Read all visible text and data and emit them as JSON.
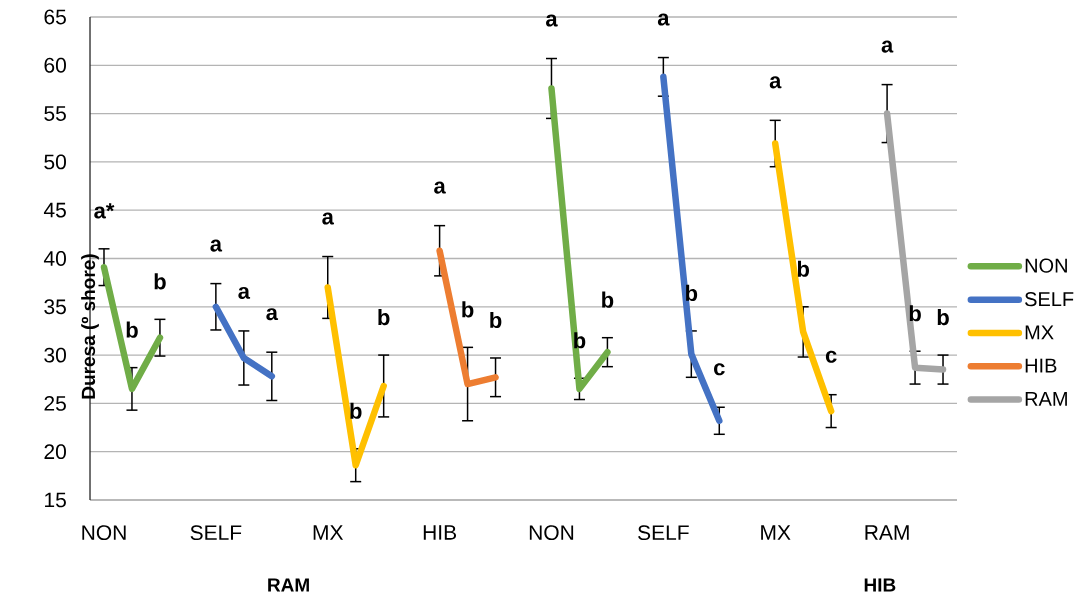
{
  "chart_data": {
    "type": "line",
    "ylabel": "Duresa (º shore)",
    "categories": [
      "NON",
      null,
      null,
      null,
      "SELF",
      null,
      null,
      null,
      "MX",
      null,
      null,
      null,
      "HIB",
      null,
      null,
      null,
      "NON",
      null,
      null,
      null,
      "SELF",
      null,
      null,
      null,
      "MX",
      null,
      null,
      null,
      "RAM",
      null,
      null
    ],
    "ylim": [
      15,
      65
    ],
    "yticks": [
      15,
      20,
      25,
      30,
      35,
      40,
      45,
      50,
      55,
      60,
      65
    ],
    "grid": "y",
    "legend": "right",
    "series": [
      {
        "name": "NON",
        "color": "#70ad47",
        "values": [
          39.1,
          26.5,
          31.8,
          null,
          null,
          null,
          null,
          null,
          null,
          null,
          null,
          null,
          null,
          null,
          null,
          null,
          57.6,
          26.5,
          30.3,
          null,
          null,
          null,
          null,
          null,
          null,
          null,
          null,
          null,
          null,
          null,
          null
        ],
        "errors": [
          1.9,
          2.2,
          1.9,
          null,
          null,
          null,
          null,
          null,
          null,
          null,
          null,
          null,
          null,
          null,
          null,
          null,
          3.1,
          1.1,
          1.5,
          null,
          null,
          null,
          null,
          null,
          null,
          null,
          null,
          null,
          null,
          null,
          null
        ],
        "value_labels": [
          "a*",
          "b",
          "b",
          null,
          null,
          null,
          null,
          null,
          null,
          null,
          null,
          null,
          null,
          null,
          null,
          null,
          "a",
          "b",
          "b",
          null,
          null,
          null,
          null,
          null,
          null,
          null,
          null,
          null,
          null,
          null,
          null
        ]
      },
      {
        "name": "SELF",
        "color": "#4472c4",
        "values": [
          null,
          null,
          null,
          null,
          35.0,
          29.7,
          27.8,
          null,
          null,
          null,
          null,
          null,
          null,
          null,
          null,
          null,
          null,
          null,
          null,
          null,
          58.8,
          30.1,
          23.2,
          null,
          null,
          null,
          null,
          null,
          null,
          null,
          null
        ],
        "errors": [
          null,
          null,
          null,
          null,
          2.4,
          2.8,
          2.5,
          null,
          null,
          null,
          null,
          null,
          null,
          null,
          null,
          null,
          null,
          null,
          null,
          null,
          2.0,
          2.4,
          1.4,
          null,
          null,
          null,
          null,
          null,
          null,
          null,
          null
        ],
        "value_labels": [
          null,
          null,
          null,
          null,
          "a",
          "a",
          "a",
          null,
          null,
          null,
          null,
          null,
          null,
          null,
          null,
          null,
          null,
          null,
          null,
          null,
          "a",
          "b",
          "c",
          null,
          null,
          null,
          null,
          null,
          null,
          null,
          null
        ]
      },
      {
        "name": "MX",
        "color": "#ffc000",
        "values": [
          null,
          null,
          null,
          null,
          null,
          null,
          null,
          null,
          37.0,
          18.6,
          26.8,
          null,
          null,
          null,
          null,
          null,
          null,
          null,
          null,
          null,
          null,
          null,
          null,
          null,
          51.9,
          32.4,
          24.2,
          null,
          null,
          null,
          null
        ],
        "errors": [
          null,
          null,
          null,
          null,
          null,
          null,
          null,
          null,
          3.2,
          1.7,
          3.2,
          null,
          null,
          null,
          null,
          null,
          null,
          null,
          null,
          null,
          null,
          null,
          null,
          null,
          2.4,
          2.6,
          1.7,
          null,
          null,
          null,
          null
        ],
        "value_labels": [
          null,
          null,
          null,
          null,
          null,
          null,
          null,
          null,
          "a",
          "b",
          "b",
          null,
          null,
          null,
          null,
          null,
          null,
          null,
          null,
          null,
          null,
          null,
          null,
          null,
          "a",
          "b",
          "c",
          null,
          null,
          null,
          null
        ]
      },
      {
        "name": "HIB",
        "color": "#ed7d31",
        "values": [
          null,
          null,
          null,
          null,
          null,
          null,
          null,
          null,
          null,
          null,
          null,
          null,
          40.8,
          27.0,
          27.7,
          null,
          null,
          null,
          null,
          null,
          null,
          null,
          null,
          null,
          null,
          null,
          null,
          null,
          null,
          null,
          null
        ],
        "errors": [
          null,
          null,
          null,
          null,
          null,
          null,
          null,
          null,
          null,
          null,
          null,
          null,
          2.6,
          3.8,
          2.0,
          null,
          null,
          null,
          null,
          null,
          null,
          null,
          null,
          null,
          null,
          null,
          null,
          null,
          null,
          null,
          null
        ],
        "value_labels": [
          null,
          null,
          null,
          null,
          null,
          null,
          null,
          null,
          null,
          null,
          null,
          null,
          "a",
          "b",
          "b",
          null,
          null,
          null,
          null,
          null,
          null,
          null,
          null,
          null,
          null,
          null,
          null,
          null,
          null,
          null,
          null
        ]
      },
      {
        "name": "RAM",
        "color": "#a5a5a5",
        "values": [
          null,
          null,
          null,
          null,
          null,
          null,
          null,
          null,
          null,
          null,
          null,
          null,
          null,
          null,
          null,
          null,
          null,
          null,
          null,
          null,
          null,
          null,
          null,
          null,
          null,
          null,
          null,
          null,
          55.0,
          28.7,
          28.5
        ],
        "errors": [
          null,
          null,
          null,
          null,
          null,
          null,
          null,
          null,
          null,
          null,
          null,
          null,
          null,
          null,
          null,
          null,
          null,
          null,
          null,
          null,
          null,
          null,
          null,
          null,
          null,
          null,
          null,
          null,
          3.0,
          1.7,
          1.5
        ],
        "value_labels": [
          null,
          null,
          null,
          null,
          null,
          null,
          null,
          null,
          null,
          null,
          null,
          null,
          null,
          null,
          null,
          null,
          null,
          null,
          null,
          null,
          null,
          null,
          null,
          null,
          null,
          null,
          null,
          null,
          "a",
          "b",
          "b"
        ]
      }
    ],
    "annotations": [
      "RAM",
      "HIB"
    ]
  }
}
